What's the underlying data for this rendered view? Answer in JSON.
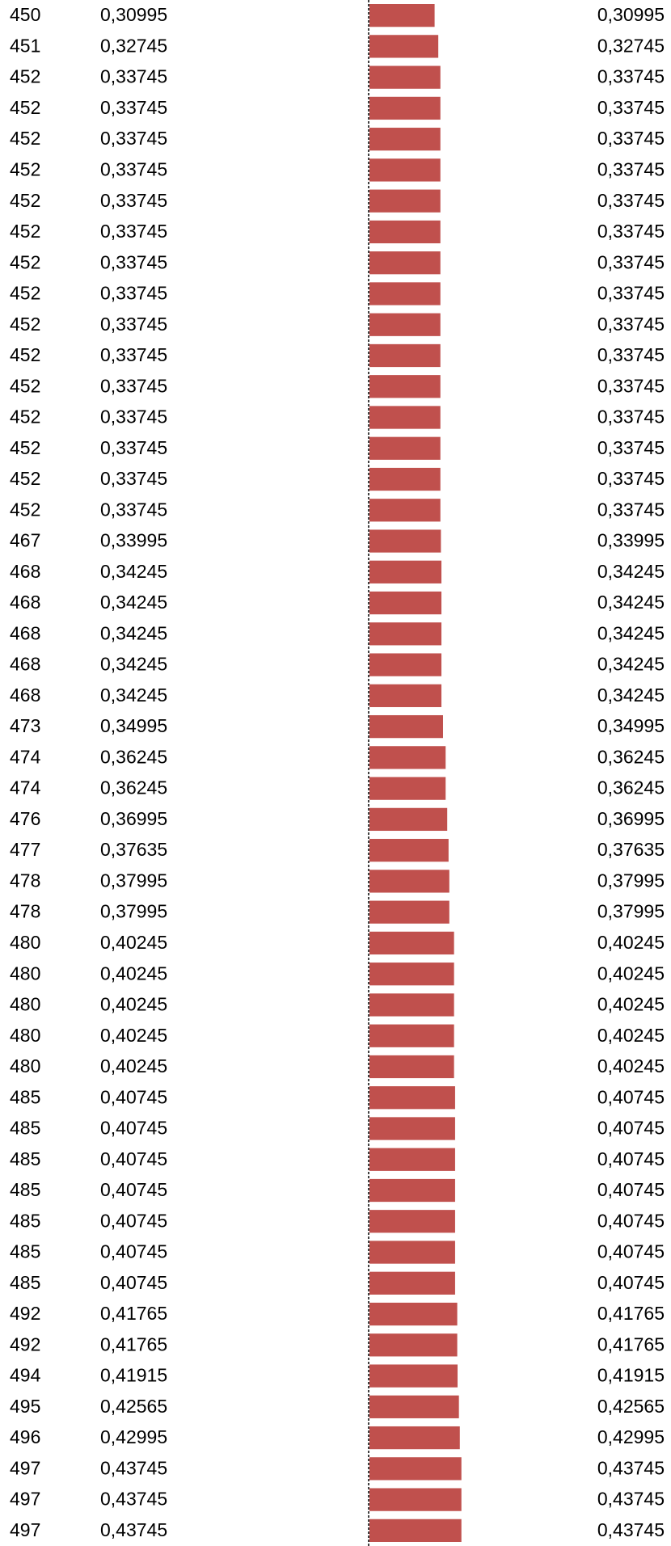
{
  "chart_data": {
    "type": "bar",
    "orientation": "horizontal",
    "color": "#c0504d",
    "categories": [
      450,
      451,
      452,
      452,
      452,
      452,
      452,
      452,
      452,
      452,
      452,
      452,
      452,
      452,
      452,
      452,
      452,
      467,
      468,
      468,
      468,
      468,
      468,
      473,
      474,
      474,
      476,
      477,
      478,
      478,
      480,
      480,
      480,
      480,
      480,
      485,
      485,
      485,
      485,
      485,
      485,
      485,
      492,
      492,
      494,
      495,
      496,
      497,
      497,
      497
    ],
    "values": [
      0.30995,
      0.32745,
      0.33745,
      0.33745,
      0.33745,
      0.33745,
      0.33745,
      0.33745,
      0.33745,
      0.33745,
      0.33745,
      0.33745,
      0.33745,
      0.33745,
      0.33745,
      0.33745,
      0.33745,
      0.33995,
      0.34245,
      0.34245,
      0.34245,
      0.34245,
      0.34245,
      0.34995,
      0.36245,
      0.36245,
      0.36995,
      0.37635,
      0.37995,
      0.37995,
      0.40245,
      0.40245,
      0.40245,
      0.40245,
      0.40245,
      0.40745,
      0.40745,
      0.40745,
      0.40745,
      0.40745,
      0.40745,
      0.40745,
      0.41765,
      0.41765,
      0.41915,
      0.42565,
      0.42995,
      0.43745,
      0.43745,
      0.43745
    ],
    "value_labels": [
      "0,30995",
      "0,32745",
      "0,33745",
      "0,33745",
      "0,33745",
      "0,33745",
      "0,33745",
      "0,33745",
      "0,33745",
      "0,33745",
      "0,33745",
      "0,33745",
      "0,33745",
      "0,33745",
      "0,33745",
      "0,33745",
      "0,33745",
      "0,33995",
      "0,34245",
      "0,34245",
      "0,34245",
      "0,34245",
      "0,34245",
      "0,34995",
      "0,36245",
      "0,36245",
      "0,36995",
      "0,37635",
      "0,37995",
      "0,37995",
      "0,40245",
      "0,40245",
      "0,40245",
      "0,40245",
      "0,40245",
      "0,40745",
      "0,40745",
      "0,40745",
      "0,40745",
      "0,40745",
      "0,40745",
      "0,40745",
      "0,41765",
      "0,41765",
      "0,41915",
      "0,42565",
      "0,42995",
      "0,43745",
      "0,43745",
      "0,43745"
    ]
  }
}
